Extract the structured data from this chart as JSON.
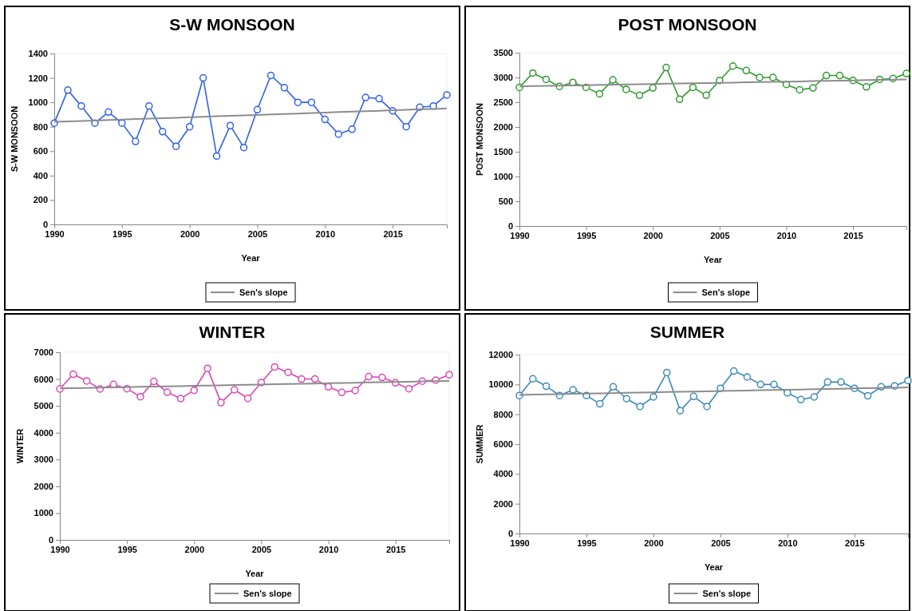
{
  "chart_data": [
    {
      "type": "line",
      "title": "S-W MONSOON",
      "xlabel": "Year",
      "ylabel": "S-W MONSOON",
      "x": [
        1990,
        1991,
        1992,
        1993,
        1994,
        1995,
        1996,
        1997,
        1998,
        1999,
        2000,
        2001,
        2002,
        2003,
        2004,
        2005,
        2006,
        2007,
        2008,
        2009,
        2010,
        2011,
        2012,
        2013,
        2014,
        2015,
        2016,
        2017,
        2018,
        2019
      ],
      "xlim": [
        1990,
        2019
      ],
      "xticks": [
        1990,
        1995,
        2000,
        2005,
        2010,
        2015
      ],
      "ylim": [
        0,
        1400
      ],
      "yticks": [
        0,
        200,
        400,
        600,
        800,
        1000,
        1200,
        1400
      ],
      "grid": false,
      "legend": "bottom",
      "series": [
        {
          "color": "#2f5ff0",
          "marker": "circle",
          "values": [
            830,
            1100,
            970,
            830,
            920,
            830,
            680,
            970,
            760,
            640,
            800,
            1200,
            560,
            810,
            630,
            940,
            1220,
            1120,
            1000,
            1000,
            860,
            740,
            780,
            1040,
            1030,
            930,
            800,
            960,
            970,
            1060
          ]
        },
        {
          "name": "Sen's slope",
          "color": "#8c8c8c",
          "marker": "none",
          "values": [
            840,
            844,
            848,
            851,
            855,
            859,
            863,
            867,
            870,
            874,
            878,
            882,
            886,
            889,
            893,
            897,
            901,
            905,
            908,
            912,
            916,
            920,
            924,
            927,
            931,
            935,
            939,
            943,
            946,
            950
          ]
        }
      ]
    },
    {
      "type": "line",
      "title": "POST MONSOON",
      "xlabel": "Year",
      "ylabel": "POST MONSOON",
      "x": [
        1990,
        1991,
        1992,
        1993,
        1994,
        1995,
        1996,
        1997,
        1998,
        1999,
        2000,
        2001,
        2002,
        2003,
        2004,
        2005,
        2006,
        2007,
        2008,
        2009,
        2010,
        2011,
        2012,
        2013,
        2014,
        2015,
        2016,
        2017,
        2018,
        2019
      ],
      "xlim": [
        1990,
        2019
      ],
      "xticks": [
        1990,
        1995,
        2000,
        2005,
        2010,
        2015
      ],
      "ylim": [
        0,
        3500
      ],
      "yticks": [
        0,
        500,
        1000,
        1500,
        2000,
        2500,
        3000,
        3500
      ],
      "grid": false,
      "legend": "bottom",
      "series": [
        {
          "color": "#2e9a2e",
          "marker": "circle",
          "values": [
            2800,
            3090,
            2960,
            2820,
            2900,
            2800,
            2670,
            2950,
            2760,
            2640,
            2790,
            3200,
            2560,
            2800,
            2640,
            2940,
            3230,
            3140,
            3000,
            3000,
            2860,
            2750,
            2790,
            3040,
            3040,
            2940,
            2810,
            2960,
            2980,
            3080
          ]
        },
        {
          "name": "Sen's slope",
          "color": "#8c8c8c",
          "marker": "none",
          "values": [
            2820,
            2825,
            2830,
            2834,
            2839,
            2844,
            2849,
            2854,
            2859,
            2863,
            2868,
            2873,
            2878,
            2883,
            2888,
            2892,
            2897,
            2902,
            2907,
            2912,
            2917,
            2921,
            2926,
            2931,
            2936,
            2941,
            2946,
            2950,
            2955,
            2960
          ]
        }
      ]
    },
    {
      "type": "line",
      "title": "WINTER",
      "xlabel": "Year",
      "ylabel": "WINTER",
      "x": [
        1990,
        1991,
        1992,
        1993,
        1994,
        1995,
        1996,
        1997,
        1998,
        1999,
        2000,
        2001,
        2002,
        2003,
        2004,
        2005,
        2006,
        2007,
        2008,
        2009,
        2010,
        2011,
        2012,
        2013,
        2014,
        2015,
        2016,
        2017,
        2018,
        2019
      ],
      "xlim": [
        1990,
        2019
      ],
      "xticks": [
        1990,
        1995,
        2000,
        2005,
        2010,
        2015
      ],
      "ylim": [
        0,
        7000
      ],
      "yticks": [
        0,
        1000,
        2000,
        3000,
        4000,
        5000,
        6000,
        7000
      ],
      "grid": false,
      "legend": "bottom",
      "series": [
        {
          "color": "#d946b4",
          "marker": "circle",
          "values": [
            5630,
            6180,
            5930,
            5630,
            5800,
            5640,
            5340,
            5910,
            5510,
            5270,
            5580,
            6400,
            5120,
            5600,
            5280,
            5870,
            6450,
            6250,
            6000,
            6000,
            5710,
            5500,
            5570,
            6090,
            6060,
            5860,
            5640,
            5920,
            5960,
            6160
          ]
        },
        {
          "name": "Sen's slope",
          "color": "#8c8c8c",
          "marker": "none",
          "values": [
            5650,
            5660,
            5669,
            5679,
            5689,
            5698,
            5708,
            5718,
            5727,
            5737,
            5747,
            5756,
            5766,
            5776,
            5785,
            5795,
            5805,
            5814,
            5824,
            5834,
            5843,
            5853,
            5863,
            5872,
            5882,
            5892,
            5901,
            5911,
            5921,
            5930
          ]
        }
      ]
    },
    {
      "type": "line",
      "title": "SUMMER",
      "xlabel": "Year",
      "ylabel": "SUMMER",
      "x": [
        1990,
        1991,
        1992,
        1993,
        1994,
        1995,
        1996,
        1997,
        1998,
        1999,
        2000,
        2001,
        2002,
        2003,
        2004,
        2005,
        2006,
        2007,
        2008,
        2009,
        2010,
        2011,
        2012,
        2013,
        2014,
        2015,
        2016,
        2017,
        2018,
        2019
      ],
      "xlim": [
        1990,
        2019
      ],
      "xticks": [
        1990,
        1995,
        2000,
        2005,
        2010,
        2015
      ],
      "ylim": [
        0,
        12000
      ],
      "yticks": [
        0,
        2000,
        4000,
        6000,
        8000,
        10000,
        12000
      ],
      "grid": false,
      "legend": "bottom",
      "series": [
        {
          "color": "#3a8ab8",
          "marker": "circle",
          "values": [
            9260,
            10380,
            9880,
            9260,
            9640,
            9260,
            8700,
            9840,
            9040,
            8520,
            9160,
            10800,
            8240,
            9200,
            8520,
            9740,
            10900,
            10500,
            10000,
            10000,
            9440,
            8980,
            9160,
            10160,
            10160,
            9740,
            9240,
            9840,
            9900,
            10260
          ]
        },
        {
          "name": "Sen's slope",
          "color": "#8c8c8c",
          "marker": "none",
          "values": [
            9300,
            9317,
            9334,
            9352,
            9369,
            9386,
            9403,
            9421,
            9438,
            9455,
            9472,
            9490,
            9507,
            9524,
            9541,
            9559,
            9576,
            9593,
            9610,
            9628,
            9645,
            9662,
            9679,
            9697,
            9714,
            9731,
            9748,
            9766,
            9783,
            9800
          ]
        }
      ]
    }
  ]
}
